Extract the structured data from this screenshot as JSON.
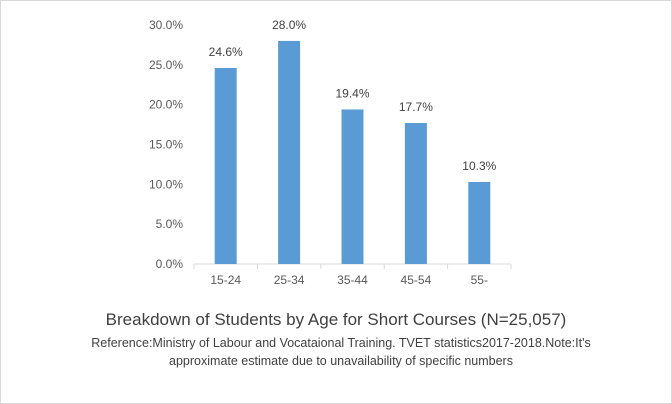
{
  "chart_data": {
    "type": "bar",
    "categories": [
      "15-24",
      "25-34",
      "35-44",
      "45-54",
      "55-"
    ],
    "values": [
      24.6,
      28.0,
      19.4,
      17.7,
      10.3
    ],
    "data_labels": [
      "24.6%",
      "28.0%",
      "19.4%",
      "17.7%",
      "10.3%"
    ],
    "ylim": [
      0,
      30
    ],
    "yticks": [
      0,
      5,
      10,
      15,
      20,
      25,
      30
    ],
    "ytick_labels": [
      "0.0%",
      "5.0%",
      "10.0%",
      "15.0%",
      "20.0%",
      "25.0%",
      "30.0%"
    ],
    "gridlines": false,
    "bar_color": "#5b9bd5",
    "title": "Breakdown of Students by Age for Short Courses (N=25,057)",
    "note": "Reference:Ministry of Labour and Vocataional Training. TVET statistics2017-2018.Note:It's approximate estimate due to unavailability of specific numbers",
    "xlabel": "",
    "ylabel": ""
  }
}
